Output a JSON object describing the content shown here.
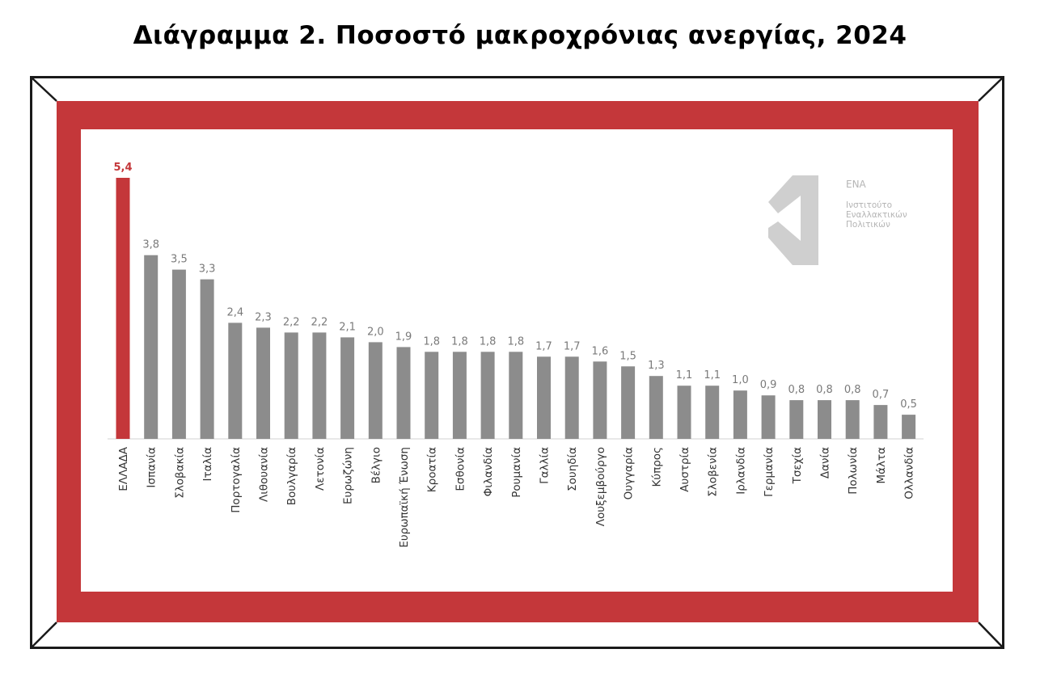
{
  "title": "Διάγραμμα 2. Ποσοστό μακροχρόνιας ανεργίας, 2024",
  "logo": {
    "name": "ΕΝΑ",
    "line1": "Ινστιτούτο",
    "line2": "Εναλλακτικών",
    "line3": "Πολιτικών"
  },
  "colors": {
    "highlight": "#c4373a",
    "bar": "#8c8c8c",
    "label": "#7a7a7a",
    "frame_band": "#c4373a"
  },
  "chart_data": {
    "type": "bar",
    "title": "Διάγραμμα 2. Ποσοστό μακροχρόνιας ανεργίας, 2024",
    "xlabel": "",
    "ylabel": "",
    "ylim": [
      0,
      5.4
    ],
    "grid": false,
    "legend": "none",
    "highlight_index": 0,
    "categories": [
      "ΕΛΛΑΔΑ",
      "Ισπανία",
      "Σλοβακία",
      "Ιταλία",
      "Πορτογαλία",
      "Λιθουανία",
      "Βουλγαρία",
      "Λετονία",
      "Ευρωζώνη",
      "Βέλγιο",
      "Ευρωπαϊκή Ένωση",
      "Κροατία",
      "Εσθονία",
      "Φιλανδία",
      "Ρουμανία",
      "Γαλλία",
      "Σουηδία",
      "Λουξεμβούργο",
      "Ουγγαρία",
      "Κύπρος",
      "Αυστρία",
      "Σλοβενία",
      "Ιρλανδία",
      "Γερμανία",
      "Τσεχία",
      "Δανία",
      "Πολωνία",
      "Μάλτα",
      "Ολλανδία"
    ],
    "values": [
      5.4,
      3.8,
      3.5,
      3.3,
      2.4,
      2.3,
      2.2,
      2.2,
      2.1,
      2.0,
      1.9,
      1.8,
      1.8,
      1.8,
      1.8,
      1.7,
      1.7,
      1.6,
      1.5,
      1.3,
      1.1,
      1.1,
      1.0,
      0.9,
      0.8,
      0.8,
      0.8,
      0.7,
      0.5
    ],
    "value_labels": [
      "5,4",
      "3,8",
      "3,5",
      "3,3",
      "2,4",
      "2,3",
      "2,2",
      "2,2",
      "2,1",
      "2,0",
      "1,9",
      "1,8",
      "1,8",
      "1,8",
      "1,8",
      "1,7",
      "1,7",
      "1,6",
      "1,5",
      "1,3",
      "1,1",
      "1,1",
      "1,0",
      "0,9",
      "0,8",
      "0,8",
      "0,8",
      "0,7",
      "0,5"
    ]
  }
}
